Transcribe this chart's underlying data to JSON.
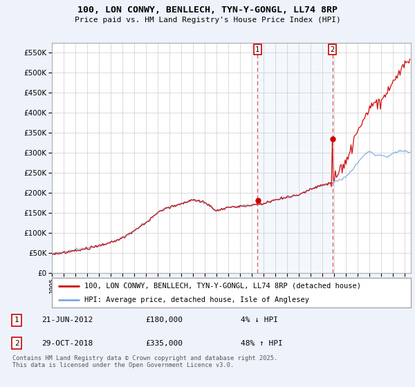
{
  "title": "100, LON CONWY, BENLLECH, TYN-Y-GONGL, LL74 8RP",
  "subtitle": "Price paid vs. HM Land Registry's House Price Index (HPI)",
  "footnote": "Contains HM Land Registry data © Crown copyright and database right 2025.\nThis data is licensed under the Open Government Licence v3.0.",
  "legend1": "100, LON CONWY, BENLLECH, TYN-Y-GONGL, LL74 8RP (detached house)",
  "legend2": "HPI: Average price, detached house, Isle of Anglesey",
  "marker1_label": "21-JUN-2012",
  "marker1_price": "£180,000",
  "marker1_hpi": "4% ↓ HPI",
  "marker2_label": "29-OCT-2018",
  "marker2_price": "£335,000",
  "marker2_hpi": "48% ↑ HPI",
  "ylim": [
    0,
    575000
  ],
  "yticks": [
    0,
    50000,
    100000,
    150000,
    200000,
    250000,
    300000,
    350000,
    400000,
    450000,
    500000,
    550000
  ],
  "background_color": "#eef2fb",
  "plot_bg": "#ffffff",
  "grid_color": "#cccccc",
  "line1_color": "#cc0000",
  "line2_color": "#7aaadd",
  "vline_color": "#dd4444",
  "marker1_x": 2012.47,
  "marker2_x": 2018.83,
  "xlim_left": 1995.0,
  "xlim_right": 2025.5
}
